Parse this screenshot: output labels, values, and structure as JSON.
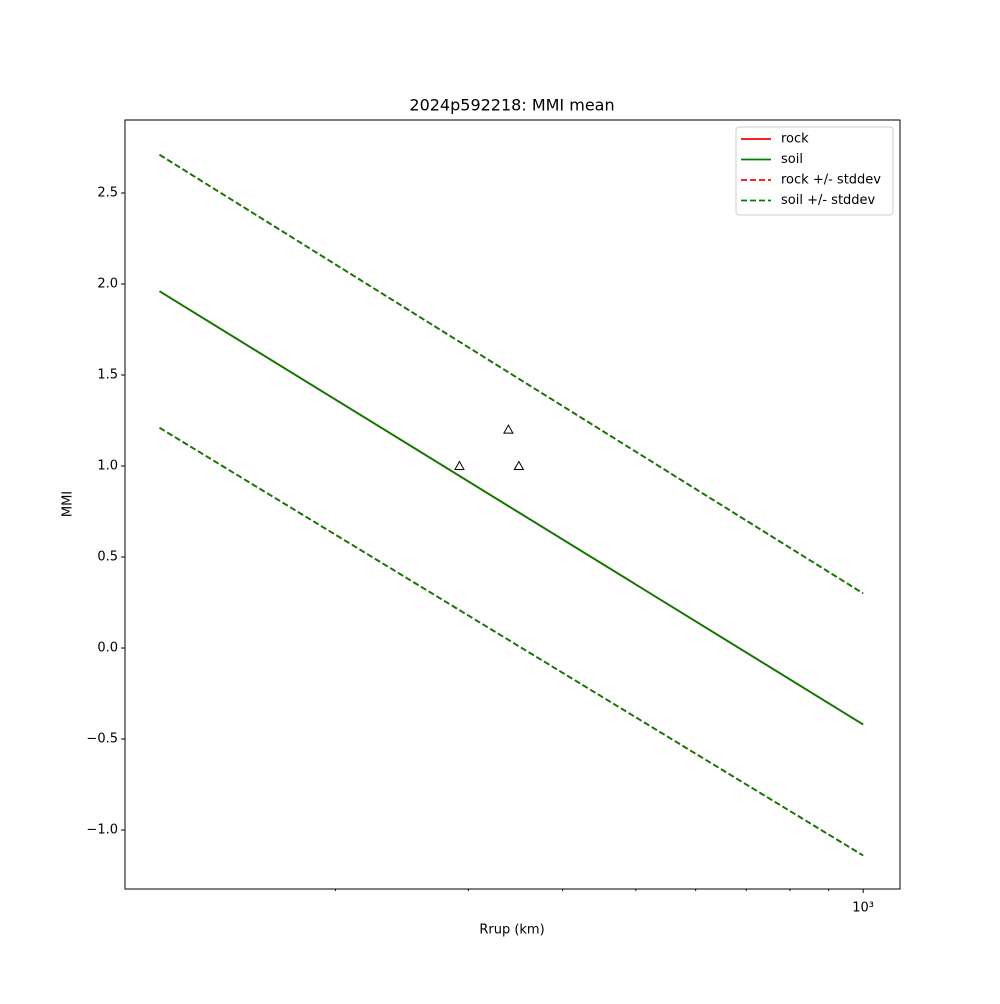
{
  "chart_data": {
    "type": "line",
    "title": "2024p592218: MMI mean",
    "xlabel": "Rrup (km)",
    "ylabel": "MMI",
    "xscale": "log",
    "xlim": [
      105.3,
      1119
    ],
    "ylim": [
      -1.324,
      2.901
    ],
    "xticks": [
      {
        "value": 1000,
        "label": "10³"
      }
    ],
    "xminorticks": [
      200,
      300,
      400,
      500,
      600,
      700,
      800,
      900
    ],
    "yticks": [
      {
        "value": -1.0,
        "label": "−1.0"
      },
      {
        "value": -0.5,
        "label": "−0.5"
      },
      {
        "value": 0.0,
        "label": "0.0"
      },
      0.5,
      {
        "value": 1.0,
        "label": "1.0"
      },
      1.5,
      {
        "value": 2.0,
        "label": "2.0"
      },
      2.5
    ],
    "legend": "upper right",
    "x": [
      117,
      1000
    ],
    "series": [
      {
        "name": "rock",
        "color": "#ff0000",
        "style": "solid",
        "values": [
          1.96,
          -0.42
        ]
      },
      {
        "name": "soil",
        "color": "#008000",
        "style": "solid",
        "values": [
          1.96,
          -0.42
        ]
      },
      {
        "name": "rock +/- stddev",
        "color": "#ff0000",
        "style": "dashed",
        "upper": [
          2.71,
          0.3
        ],
        "lower": [
          1.21,
          -1.14
        ]
      },
      {
        "name": "soil +/- stddev",
        "color": "#008000",
        "style": "dashed",
        "upper": [
          2.71,
          0.3
        ],
        "lower": [
          1.21,
          -1.14
        ]
      }
    ],
    "points": {
      "x": [
        292,
        339,
        350
      ],
      "y": [
        1.0,
        1.2,
        1.0
      ],
      "color": "#000000"
    }
  }
}
